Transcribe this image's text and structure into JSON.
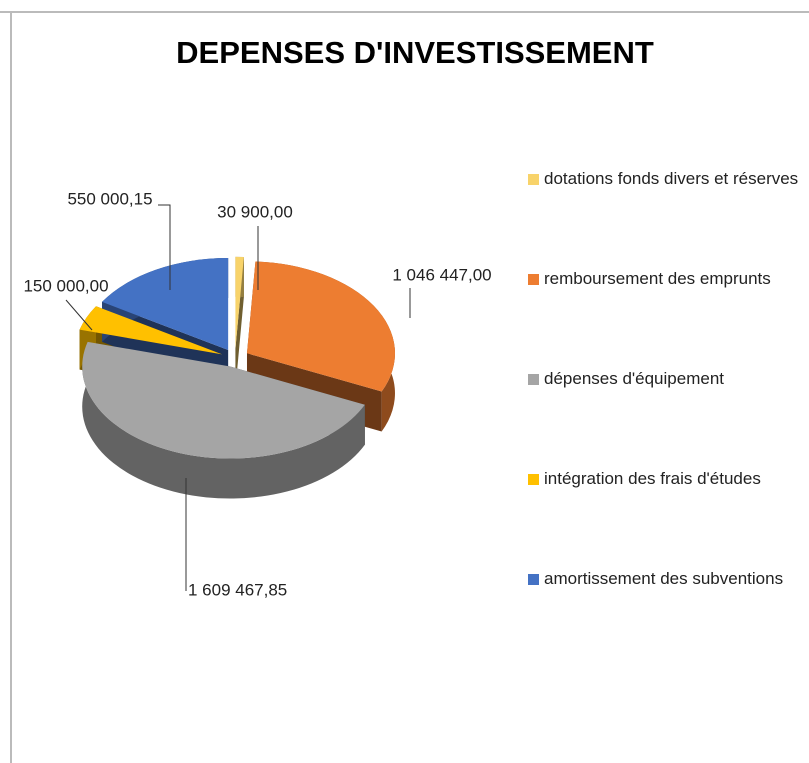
{
  "chart_data": {
    "type": "pie",
    "title": "DEPENSES D'INVESTISSEMENT",
    "categories": [
      "dotations fonds divers et réserves",
      "remboursement des emprunts",
      "dépenses d'équipement",
      "intégration des frais d'études",
      "amortissement des subventions"
    ],
    "values": [
      30900,
      1046447,
      1609467.85,
      150000,
      550000.15
    ],
    "value_labels": [
      "30 900,00",
      "1 046 447,00",
      "1 609 467,85",
      "150 000,00",
      "550 000,15"
    ],
    "colors": [
      "#f8d36a",
      "#ed7d31",
      "#a5a5a5",
      "#ffc000",
      "#4472c4"
    ],
    "legend": "right"
  }
}
